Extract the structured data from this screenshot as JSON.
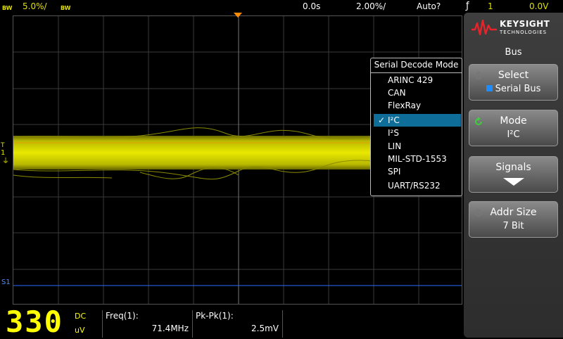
{
  "topbar": {
    "ch1_bw_left": "BW",
    "ch1_scale": "5.0%/",
    "ch1_bw_right": "BW",
    "time_delay": "0.0s",
    "time_scale": "2.00%/",
    "trigger_mode": "Auto?",
    "trigger_source": "1",
    "trigger_level": "0.0V"
  },
  "markers": {
    "ch1_ground": "1",
    "trigger_level_mark": "T",
    "serial_label": "S1"
  },
  "popup": {
    "title": "Serial Decode Mode",
    "items": [
      "ARINC 429",
      "CAN",
      "FlexRay",
      "I²C",
      "I²S",
      "LIN",
      "MIL-STD-1553",
      "SPI",
      "UART/RS232"
    ],
    "selected": "I²C"
  },
  "brand": {
    "name": "KEYSIGHT",
    "sub": "TECHNOLOGIES"
  },
  "menu": {
    "title": "Bus",
    "select": {
      "label": "Select",
      "value": "Serial Bus"
    },
    "mode": {
      "label": "Mode",
      "value": "I²C"
    },
    "signals": {
      "label": "Signals"
    },
    "addr_size": {
      "label": "Addr Size",
      "value": "7 Bit"
    }
  },
  "readout": {
    "digits": "330",
    "coupling": "DC",
    "unit": "uV"
  },
  "measurements": [
    {
      "label": "Freq(1):",
      "value": "71.4MHz"
    },
    {
      "label": "Pk-Pk(1):",
      "value": "2.5mV"
    }
  ],
  "colors": {
    "channel1": "#e0e000",
    "trigger": "#ff8c00",
    "serial": "#4a8cff",
    "selection": "#0f6d9a"
  }
}
